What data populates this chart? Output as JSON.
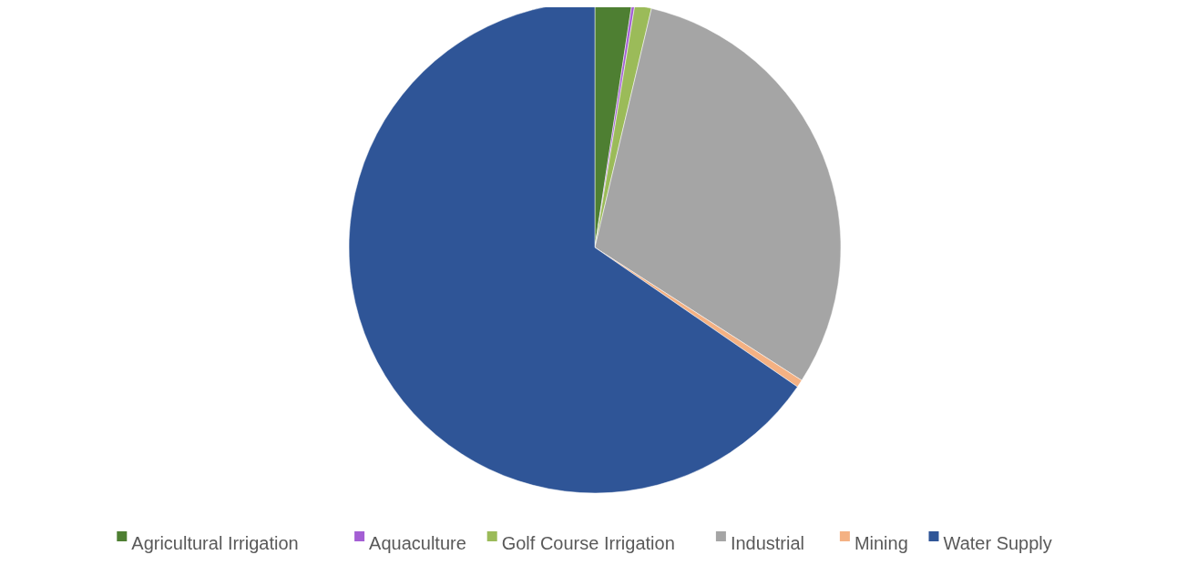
{
  "chart_data": {
    "type": "pie",
    "categories": [
      "Agricultural Irrigation",
      "Aquaculture",
      "Golf Course Irrigation",
      "Industrial",
      "Mining",
      "Water Supply"
    ],
    "values": [
      2.4,
      0.2,
      1.1,
      30.4,
      0.5,
      65.4
    ],
    "colors": [
      "#4e7f32",
      "#a45fd4",
      "#9bbb59",
      "#a5a5a5",
      "#f4b183",
      "#2f5597"
    ],
    "legend": "bottom"
  }
}
